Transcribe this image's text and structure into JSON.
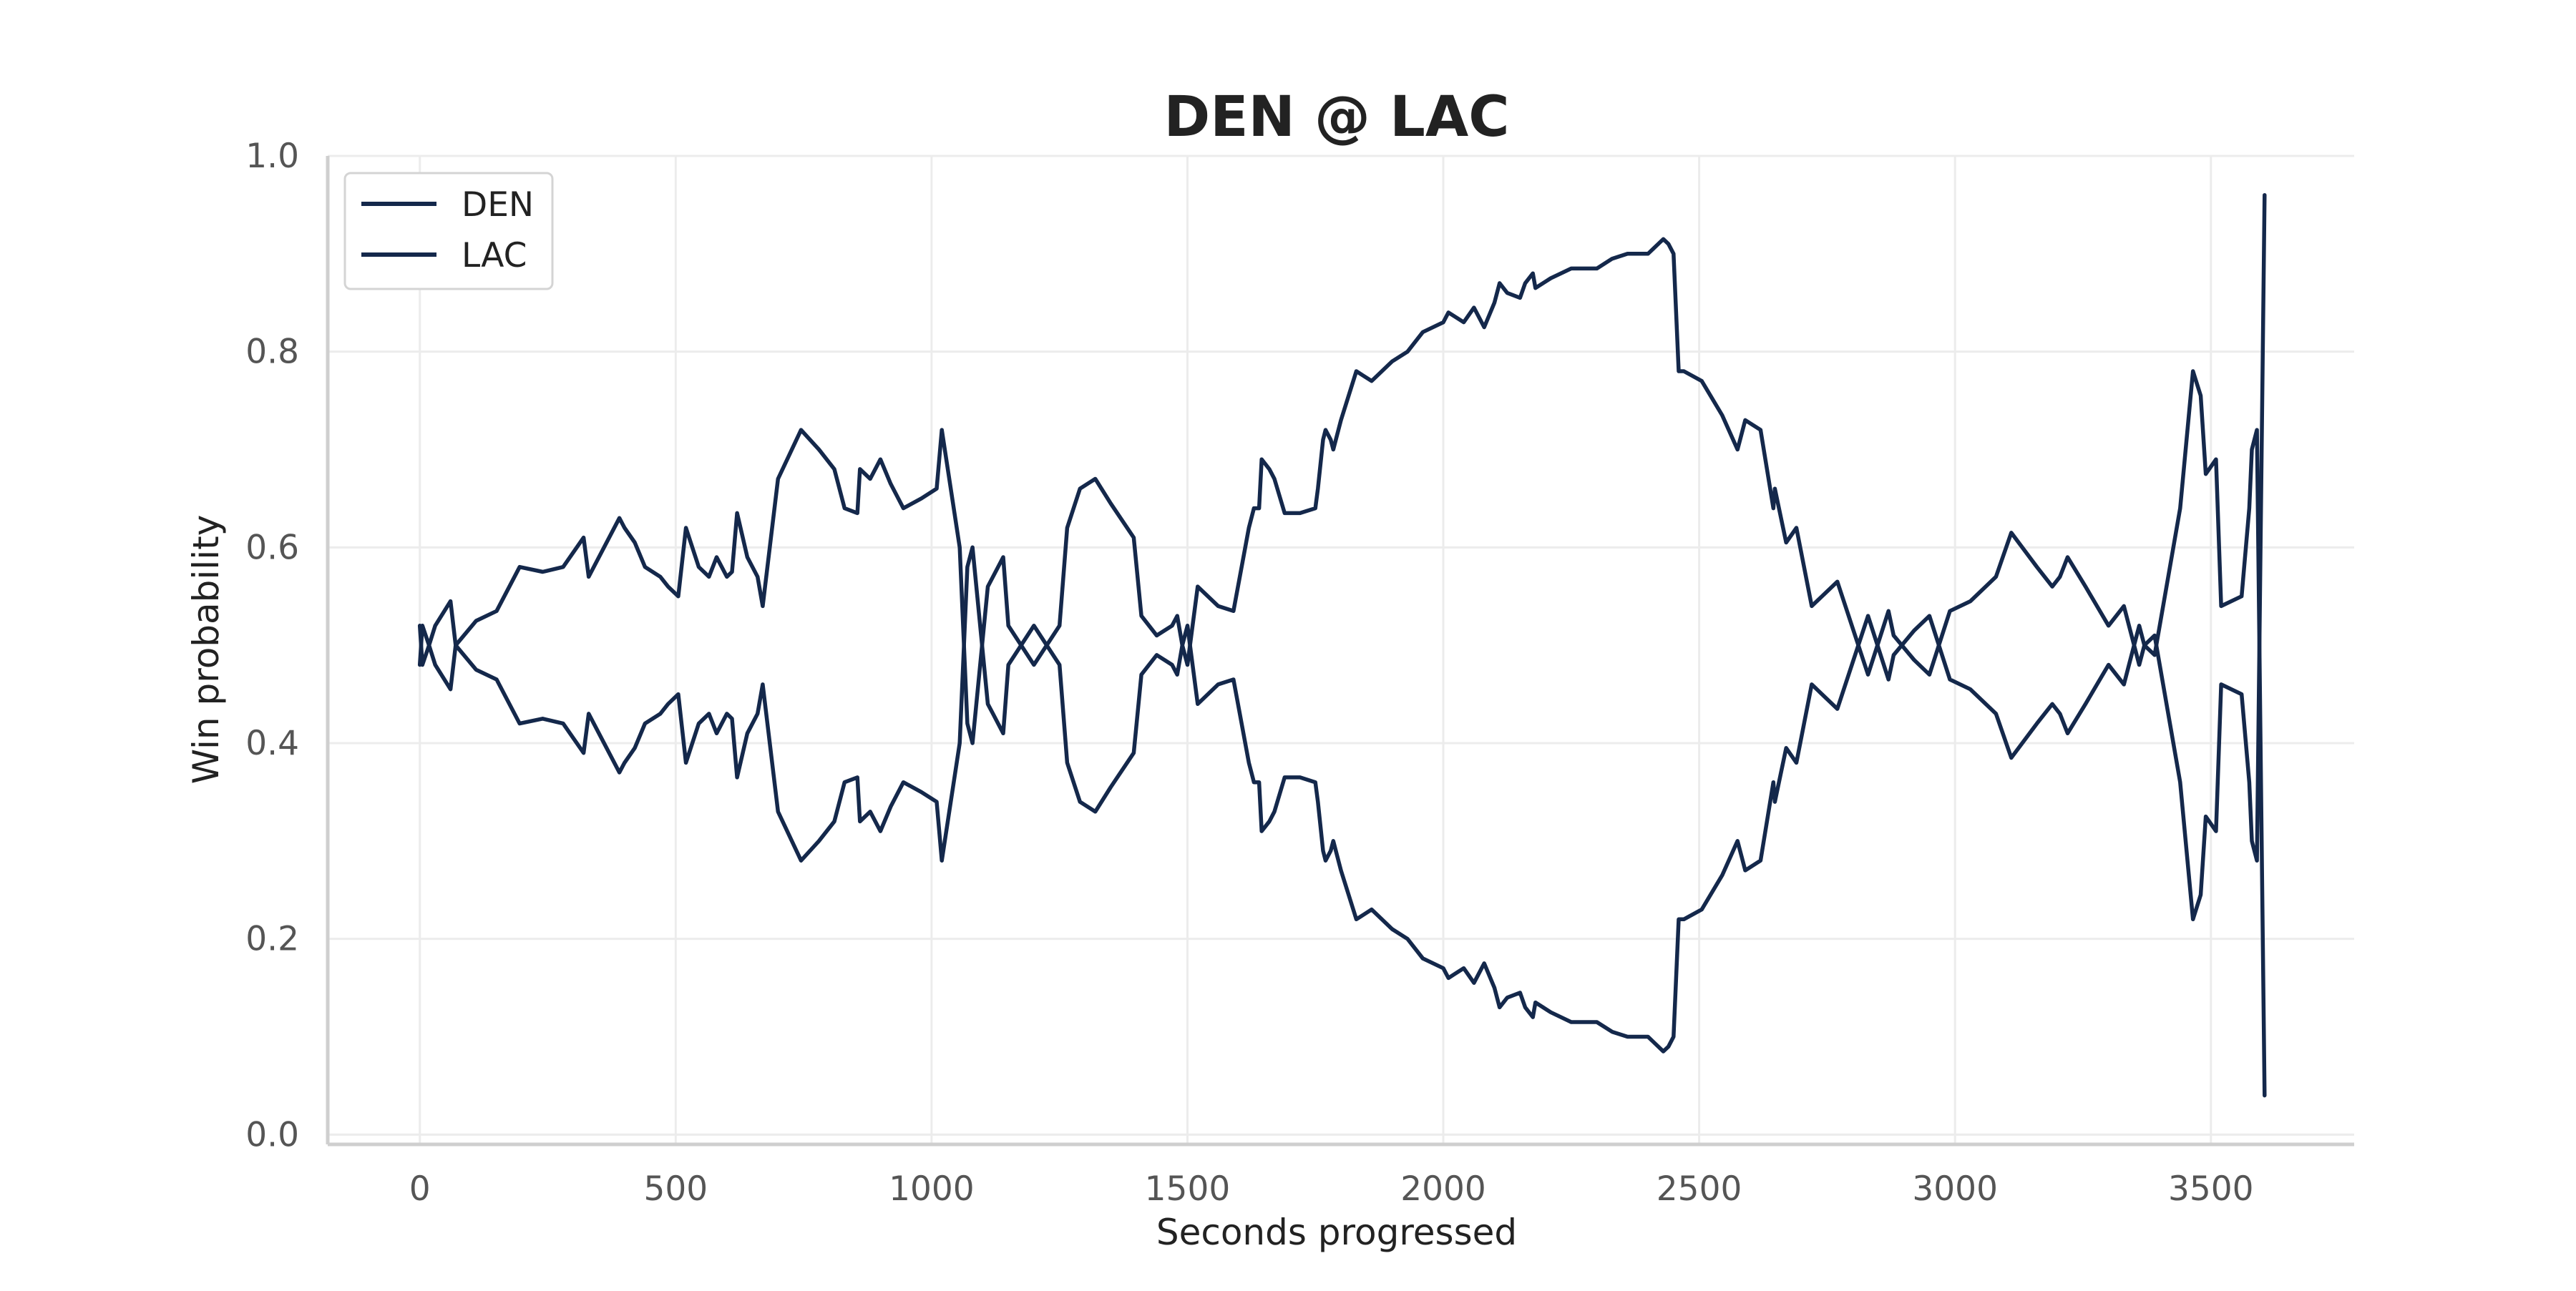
{
  "chart_data": {
    "type": "line",
    "title": "DEN @ LAC",
    "xlabel": "Seconds progressed",
    "ylabel": "Win probability",
    "xlim": [
      -180,
      3780
    ],
    "ylim": [
      -0.01,
      1.0
    ],
    "xticks": [
      0,
      500,
      1000,
      1500,
      2000,
      2500,
      3000,
      3500
    ],
    "yticks": [
      0.0,
      0.2,
      0.4,
      0.6,
      0.8,
      1.0
    ],
    "grid": true,
    "legend": "top-left",
    "colors": {
      "DEN": "#14284b",
      "LAC": "#14284b"
    },
    "series": [
      {
        "name": "DEN",
        "x": [
          0,
          5,
          18,
          30,
          60,
          70,
          110,
          150,
          195,
          240,
          280,
          320,
          330,
          350,
          390,
          400,
          420,
          440,
          470,
          485,
          505,
          520,
          545,
          565,
          580,
          600,
          610,
          620,
          640,
          660,
          670,
          700,
          745,
          780,
          810,
          830,
          855,
          860,
          880,
          900,
          920,
          945,
          980,
          1010,
          1020,
          1055,
          1070,
          1080,
          1110,
          1120,
          1140,
          1150,
          1200,
          1250,
          1265,
          1290,
          1320,
          1350,
          1395,
          1410,
          1440,
          1470,
          1480,
          1490,
          1500,
          1520,
          1560,
          1590,
          1620,
          1630,
          1640,
          1645,
          1660,
          1670,
          1690,
          1720,
          1750,
          1755,
          1765,
          1770,
          1780,
          1785,
          1800,
          1830,
          1860,
          1900,
          1930,
          1960,
          2000,
          2010,
          2040,
          2060,
          2080,
          2100,
          2110,
          2125,
          2150,
          2160,
          2175,
          2180,
          2210,
          2250,
          2300,
          2330,
          2360,
          2400,
          2410,
          2430,
          2440,
          2450,
          2460,
          2470,
          2505,
          2545,
          2575,
          2590,
          2620,
          2645,
          2648,
          2660,
          2670,
          2690,
          2720,
          2770,
          2830,
          2870,
          2880,
          2920,
          2950,
          2990,
          3030,
          3080,
          3110,
          3160,
          3190,
          3205,
          3220,
          3255,
          3300,
          3330,
          3340,
          3360,
          3370,
          3390,
          3440,
          3465,
          3480,
          3490,
          3510,
          3520,
          3560,
          3575,
          3580,
          3590,
          3605
        ],
        "y": [
          0.48,
          0.52,
          0.5,
          0.48,
          0.455,
          0.5,
          0.475,
          0.465,
          0.42,
          0.425,
          0.42,
          0.39,
          0.43,
          0.41,
          0.37,
          0.38,
          0.395,
          0.42,
          0.43,
          0.44,
          0.45,
          0.38,
          0.42,
          0.43,
          0.41,
          0.43,
          0.425,
          0.365,
          0.41,
          0.43,
          0.46,
          0.33,
          0.28,
          0.3,
          0.32,
          0.36,
          0.365,
          0.32,
          0.33,
          0.31,
          0.335,
          0.36,
          0.35,
          0.34,
          0.28,
          0.4,
          0.58,
          0.6,
          0.44,
          0.43,
          0.41,
          0.48,
          0.52,
          0.48,
          0.38,
          0.34,
          0.33,
          0.355,
          0.39,
          0.47,
          0.49,
          0.48,
          0.47,
          0.5,
          0.52,
          0.44,
          0.46,
          0.465,
          0.38,
          0.36,
          0.36,
          0.31,
          0.32,
          0.33,
          0.365,
          0.365,
          0.36,
          0.34,
          0.29,
          0.28,
          0.29,
          0.3,
          0.27,
          0.22,
          0.23,
          0.21,
          0.2,
          0.18,
          0.17,
          0.16,
          0.17,
          0.155,
          0.175,
          0.15,
          0.13,
          0.14,
          0.145,
          0.13,
          0.12,
          0.135,
          0.125,
          0.115,
          0.115,
          0.105,
          0.1,
          0.1,
          0.095,
          0.085,
          0.09,
          0.1,
          0.22,
          0.22,
          0.23,
          0.265,
          0.3,
          0.27,
          0.28,
          0.36,
          0.34,
          0.37,
          0.395,
          0.38,
          0.46,
          0.435,
          0.53,
          0.465,
          0.49,
          0.515,
          0.53,
          0.465,
          0.455,
          0.43,
          0.385,
          0.42,
          0.44,
          0.43,
          0.41,
          0.44,
          0.48,
          0.46,
          0.48,
          0.52,
          0.5,
          0.51,
          0.36,
          0.22,
          0.245,
          0.325,
          0.31,
          0.46,
          0.45,
          0.36,
          0.3,
          0.28,
          0.96
        ]
      },
      {
        "name": "LAC",
        "x": [
          0,
          5,
          18,
          30,
          60,
          70,
          110,
          150,
          195,
          240,
          280,
          320,
          330,
          350,
          390,
          400,
          420,
          440,
          470,
          485,
          505,
          520,
          545,
          565,
          580,
          600,
          610,
          620,
          640,
          660,
          670,
          700,
          745,
          780,
          810,
          830,
          855,
          860,
          880,
          900,
          920,
          945,
          980,
          1010,
          1020,
          1055,
          1070,
          1080,
          1110,
          1120,
          1140,
          1150,
          1200,
          1250,
          1265,
          1290,
          1320,
          1350,
          1395,
          1410,
          1440,
          1470,
          1480,
          1490,
          1500,
          1520,
          1560,
          1590,
          1620,
          1630,
          1640,
          1645,
          1660,
          1670,
          1690,
          1720,
          1750,
          1755,
          1765,
          1770,
          1780,
          1785,
          1800,
          1830,
          1860,
          1900,
          1930,
          1960,
          2000,
          2010,
          2040,
          2060,
          2080,
          2100,
          2110,
          2125,
          2150,
          2160,
          2175,
          2180,
          2210,
          2250,
          2300,
          2330,
          2360,
          2400,
          2410,
          2430,
          2440,
          2450,
          2460,
          2470,
          2505,
          2545,
          2575,
          2590,
          2620,
          2645,
          2648,
          2660,
          2670,
          2690,
          2720,
          2770,
          2830,
          2870,
          2880,
          2920,
          2950,
          2990,
          3030,
          3080,
          3110,
          3160,
          3190,
          3205,
          3220,
          3255,
          3300,
          3330,
          3340,
          3360,
          3370,
          3390,
          3440,
          3465,
          3480,
          3490,
          3510,
          3520,
          3560,
          3575,
          3580,
          3590,
          3605
        ],
        "y": [
          0.52,
          0.48,
          0.5,
          0.52,
          0.545,
          0.5,
          0.525,
          0.535,
          0.58,
          0.575,
          0.58,
          0.61,
          0.57,
          0.59,
          0.63,
          0.62,
          0.605,
          0.58,
          0.57,
          0.56,
          0.55,
          0.62,
          0.58,
          0.57,
          0.59,
          0.57,
          0.575,
          0.635,
          0.59,
          0.57,
          0.54,
          0.67,
          0.72,
          0.7,
          0.68,
          0.64,
          0.635,
          0.68,
          0.67,
          0.69,
          0.665,
          0.64,
          0.65,
          0.66,
          0.72,
          0.6,
          0.42,
          0.4,
          0.56,
          0.57,
          0.59,
          0.52,
          0.48,
          0.52,
          0.62,
          0.66,
          0.67,
          0.645,
          0.61,
          0.53,
          0.51,
          0.52,
          0.53,
          0.5,
          0.48,
          0.56,
          0.54,
          0.535,
          0.62,
          0.64,
          0.64,
          0.69,
          0.68,
          0.67,
          0.635,
          0.635,
          0.64,
          0.66,
          0.71,
          0.72,
          0.71,
          0.7,
          0.73,
          0.78,
          0.77,
          0.79,
          0.8,
          0.82,
          0.83,
          0.84,
          0.83,
          0.845,
          0.825,
          0.85,
          0.87,
          0.86,
          0.855,
          0.87,
          0.88,
          0.865,
          0.875,
          0.885,
          0.885,
          0.895,
          0.9,
          0.9,
          0.905,
          0.915,
          0.91,
          0.9,
          0.78,
          0.78,
          0.77,
          0.735,
          0.7,
          0.73,
          0.72,
          0.64,
          0.66,
          0.63,
          0.605,
          0.62,
          0.54,
          0.565,
          0.47,
          0.535,
          0.51,
          0.485,
          0.47,
          0.535,
          0.545,
          0.57,
          0.615,
          0.58,
          0.56,
          0.57,
          0.59,
          0.56,
          0.52,
          0.54,
          0.52,
          0.48,
          0.5,
          0.49,
          0.64,
          0.78,
          0.755,
          0.675,
          0.69,
          0.54,
          0.55,
          0.64,
          0.7,
          0.72,
          0.04
        ]
      }
    ]
  }
}
